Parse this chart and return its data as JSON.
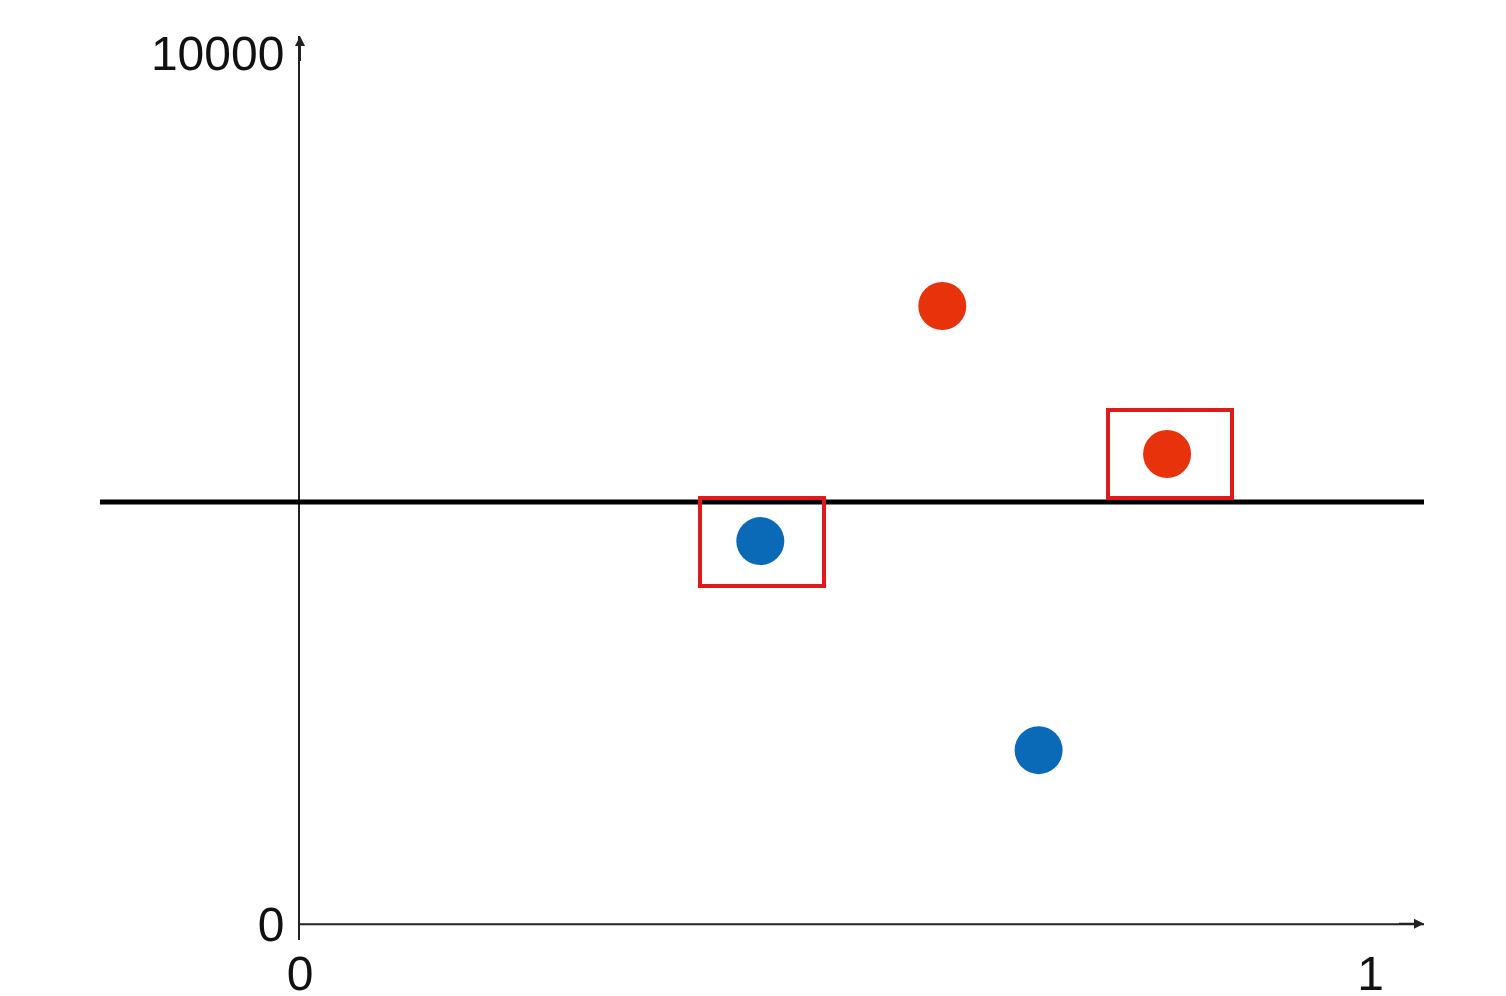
{
  "chart_data": {
    "type": "scatter",
    "marker": "circle",
    "grid": false,
    "xlim": [
      0,
      1.05
    ],
    "ylim": [
      -180,
      10200
    ],
    "xticks": [
      0,
      1
    ],
    "yticks": [
      0,
      10000
    ],
    "series": [
      {
        "color": "#e8320c",
        "x": [
          0.6,
          0.81
        ],
        "values": [
          7100,
          5400
        ]
      },
      {
        "color": "#0a6ab7",
        "x": [
          0.43,
          0.69
        ],
        "values": [
          4400,
          2000
        ]
      }
    ],
    "ref_lines": [
      {
        "axis": "y",
        "value": 4850,
        "color": "#000000"
      }
    ]
  }
}
